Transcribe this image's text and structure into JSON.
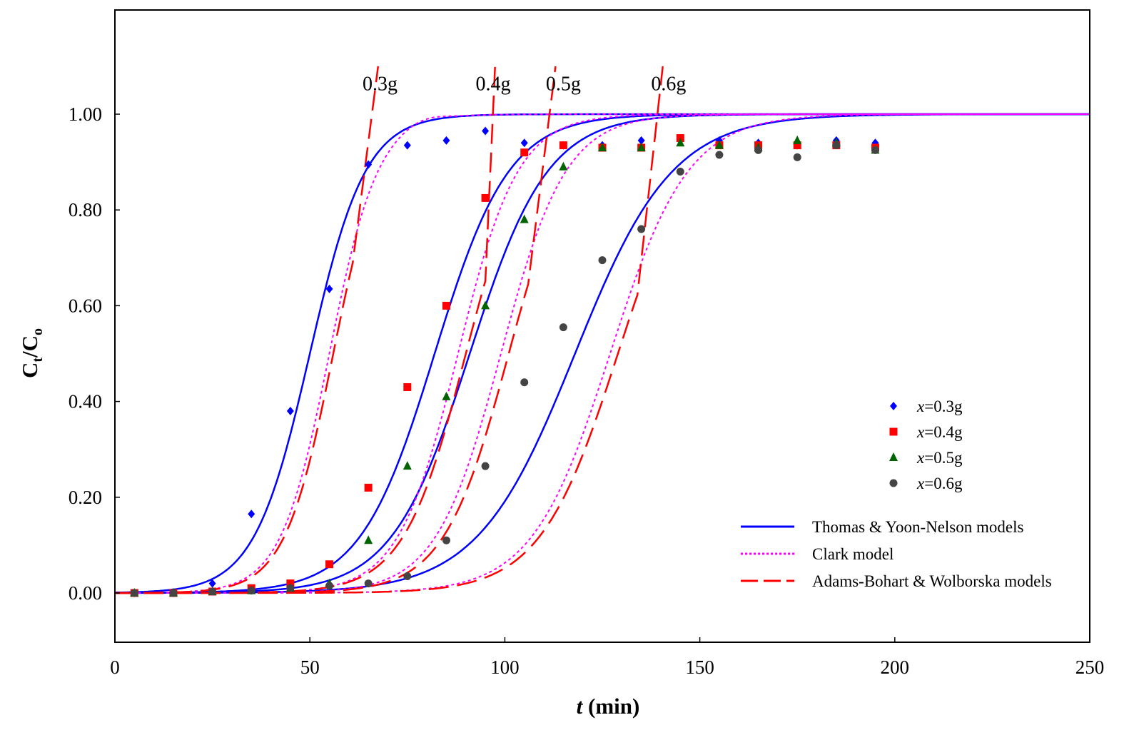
{
  "chart_data": {
    "type": "scatter",
    "title": "",
    "xlabel": {
      "var": "t",
      "unit": " (min)"
    },
    "ylabel": {
      "main": "C",
      "sub1": "t",
      "mid": "/C",
      "sub2": "o"
    },
    "xlim": [
      0,
      250
    ],
    "ylim": [
      -0.1,
      1.2
    ],
    "x_ticks": [
      0,
      50,
      100,
      150,
      200,
      250
    ],
    "x_tick_labels": [
      "0",
      "50",
      "100",
      "150",
      "200",
      "250"
    ],
    "y_ticks": [
      0,
      0.2,
      0.4,
      0.6,
      0.8,
      1.0
    ],
    "y_tick_labels": [
      "0.00",
      "0.20",
      "0.40",
      "0.60",
      "0.80",
      "1.00"
    ],
    "grid": false,
    "series": [
      {
        "name": "x=0.3g",
        "var": "x",
        "value_label": "=0.3g",
        "marker": "diamond",
        "color": "#0000ff",
        "points": [
          [
            5,
            0
          ],
          [
            15,
            0
          ],
          [
            25,
            0.02
          ],
          [
            35,
            0.165
          ],
          [
            45,
            0.38
          ],
          [
            55,
            0.635
          ],
          [
            65,
            0.895
          ],
          [
            75,
            0.935
          ],
          [
            85,
            0.945
          ],
          [
            95,
            0.965
          ],
          [
            105,
            0.94
          ],
          [
            115,
            0.935
          ],
          [
            125,
            0.935
          ],
          [
            135,
            0.945
          ],
          [
            145,
            0.945
          ],
          [
            155,
            0.945
          ],
          [
            165,
            0.94
          ],
          [
            175,
            0.935
          ],
          [
            185,
            0.945
          ],
          [
            195,
            0.94
          ]
        ]
      },
      {
        "name": "x=0.4g",
        "var": "x",
        "value_label": "=0.4g",
        "marker": "square",
        "color": "#ff0000",
        "points": [
          [
            5,
            0
          ],
          [
            15,
            0
          ],
          [
            25,
            0.003
          ],
          [
            35,
            0.01
          ],
          [
            45,
            0.02
          ],
          [
            55,
            0.06
          ],
          [
            65,
            0.22
          ],
          [
            75,
            0.43
          ],
          [
            85,
            0.6
          ],
          [
            95,
            0.825
          ],
          [
            105,
            0.92
          ],
          [
            115,
            0.935
          ],
          [
            125,
            0.93
          ],
          [
            135,
            0.93
          ],
          [
            145,
            0.95
          ],
          [
            155,
            0.935
          ],
          [
            165,
            0.935
          ],
          [
            175,
            0.935
          ],
          [
            185,
            0.935
          ],
          [
            195,
            0.93
          ]
        ]
      },
      {
        "name": "x=0.5g",
        "var": "x",
        "value_label": "=0.5g",
        "marker": "triangle",
        "color": "#006400",
        "points": [
          [
            5,
            0
          ],
          [
            15,
            0
          ],
          [
            25,
            0.003
          ],
          [
            35,
            0.005
          ],
          [
            45,
            0.01
          ],
          [
            55,
            0.02
          ],
          [
            65,
            0.11
          ],
          [
            75,
            0.265
          ],
          [
            85,
            0.41
          ],
          [
            95,
            0.6
          ],
          [
            105,
            0.78
          ],
          [
            115,
            0.89
          ],
          [
            125,
            0.93
          ],
          [
            135,
            0.93
          ],
          [
            145,
            0.94
          ],
          [
            155,
            0.935
          ],
          [
            165,
            0.93
          ],
          [
            175,
            0.945
          ],
          [
            185,
            0.94
          ],
          [
            195,
            0.925
          ]
        ]
      },
      {
        "name": "x=0.6g",
        "var": "x",
        "value_label": "=0.6g",
        "marker": "circle",
        "color": "#444444",
        "points": [
          [
            5,
            0
          ],
          [
            15,
            0
          ],
          [
            25,
            0.003
          ],
          [
            35,
            0.005
          ],
          [
            45,
            0.01
          ],
          [
            55,
            0.015
          ],
          [
            65,
            0.02
          ],
          [
            75,
            0.035
          ],
          [
            85,
            0.11
          ],
          [
            95,
            0.265
          ],
          [
            105,
            0.44
          ],
          [
            115,
            0.555
          ],
          [
            125,
            0.695
          ],
          [
            135,
            0.76
          ],
          [
            145,
            0.88
          ],
          [
            155,
            0.915
          ],
          [
            165,
            0.925
          ],
          [
            175,
            0.91
          ],
          [
            185,
            0.935
          ],
          [
            195,
            0.925
          ]
        ]
      }
    ],
    "model_curves": [
      {
        "model": "thomas",
        "name": "Thomas & Yoon-Nelson models",
        "color": "#0000ff",
        "dash": "none",
        "params": [
          {
            "t50": 50,
            "k": 0.14
          },
          {
            "t50": 82,
            "k": 0.105
          },
          {
            "t50": 91,
            "k": 0.1
          },
          {
            "t50": 118,
            "k": 0.08
          }
        ]
      },
      {
        "model": "clark",
        "name": "Clark model",
        "color": "#ff00ff",
        "dash": "4,4",
        "params": [
          {
            "t50": 55,
            "k": 0.16,
            "peak": 0.008
          },
          {
            "t50": 88,
            "k": 0.13,
            "peak": 0
          },
          {
            "t50": 99,
            "k": 0.12,
            "peak": 0
          },
          {
            "t50": 127,
            "k": 0.1,
            "peak": 0
          }
        ]
      },
      {
        "model": "adams",
        "name": "Adams-Bohart & Wolborska models",
        "color": "#ff0000",
        "dash": "28,12",
        "params": [
          {
            "t50": 56,
            "k": 0.16,
            "tend": 67.5
          },
          {
            "t50": 90,
            "k": 0.125,
            "tend": 97.5
          },
          {
            "t50": 101,
            "k": 0.12,
            "tend": 113
          },
          {
            "t50": 129,
            "k": 0.1,
            "tend": 140.5
          }
        ]
      }
    ],
    "curve_labels": [
      {
        "text": "0.3g",
        "x": 68,
        "y": 1.05
      },
      {
        "text": "0.4g",
        "x": 97,
        "y": 1.05
      },
      {
        "text": "0.5g",
        "x": 115,
        "y": 1.05
      },
      {
        "text": "0.6g",
        "x": 142,
        "y": 1.05
      }
    ],
    "legend_position": "right"
  }
}
